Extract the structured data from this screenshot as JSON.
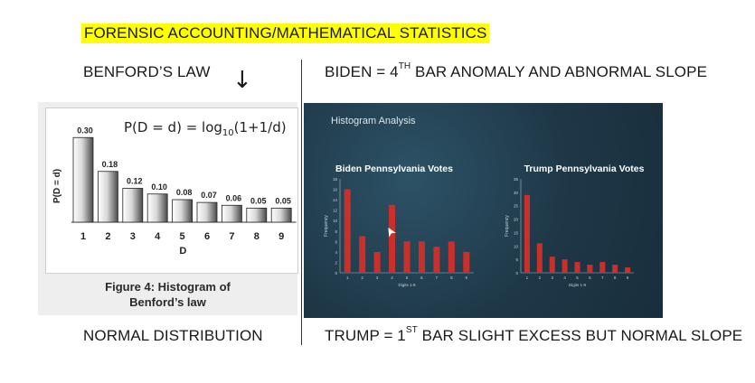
{
  "heading": "FORENSIC ACCOUNTING/MATHEMATICAL STATISTICS",
  "left_top_label": "BENFORD’S LAW",
  "arrow": "↓",
  "right_top": {
    "text": "BIDEN = 4",
    "sup": "TH",
    "rest": " BAR ANOMALY AND ABNORMAL SLOPE"
  },
  "left_bottom_label": "NORMAL DISTRIBUTION",
  "right_bottom": {
    "text": "TRUMP = 1",
    "sup": "ST",
    "rest": " BAR SLIGHT EXCESS BUT NORMAL SLOPE"
  },
  "benford": {
    "formula_prefix": "P(D = d) = log",
    "formula_sub": "10",
    "formula_suffix": "(1+1/d)",
    "caption_line1": "Figure 4: Histogram of",
    "caption_line2": "Benford’s law"
  },
  "histogram_panel": {
    "title": "Histogram Analysis",
    "cursor": "➤"
  },
  "chart_data": [
    {
      "type": "bar",
      "categories": [
        "1",
        "2",
        "3",
        "4",
        "5",
        "6",
        "7",
        "8",
        "9"
      ],
      "values": [
        0.3,
        0.18,
        0.12,
        0.1,
        0.08,
        0.07,
        0.06,
        0.05,
        0.05
      ],
      "value_labels": [
        "0.30",
        "0.18",
        "0.12",
        "0.10",
        "0.08",
        "0.07",
        "0.06",
        "0.05",
        "0.05"
      ],
      "xlabel": "D",
      "ylabel": "P(D = d)",
      "ylim": [
        0,
        0.32
      ],
      "bar_color": "#bdbdbd"
    },
    {
      "type": "bar",
      "title": "Biden Pennsylvania Votes",
      "categories": [
        "1",
        "2",
        "3",
        "4",
        "5",
        "6",
        "7",
        "8",
        "9"
      ],
      "values": [
        16,
        7,
        4,
        13,
        6,
        6,
        5,
        6,
        4
      ],
      "xlabel": "Digits 1-9",
      "ylabel": "Frequency",
      "ylim": [
        0,
        18
      ],
      "yticks": [
        0,
        2,
        4,
        6,
        8,
        10,
        12,
        14,
        16,
        18
      ],
      "bar_color": "#c9302c"
    },
    {
      "type": "bar",
      "title": "Trump Pennsylvania Votes",
      "categories": [
        "1",
        "2",
        "3",
        "4",
        "5",
        "6",
        "7",
        "8",
        "9"
      ],
      "values": [
        29,
        11,
        6,
        5,
        4,
        3,
        4,
        3,
        2
      ],
      "xlabel": "Digits 1-9",
      "ylabel": "Frequency",
      "ylim": [
        0,
        35
      ],
      "yticks": [
        0,
        5,
        10,
        15,
        20,
        25,
        30,
        35
      ],
      "bar_color": "#c9302c"
    }
  ]
}
